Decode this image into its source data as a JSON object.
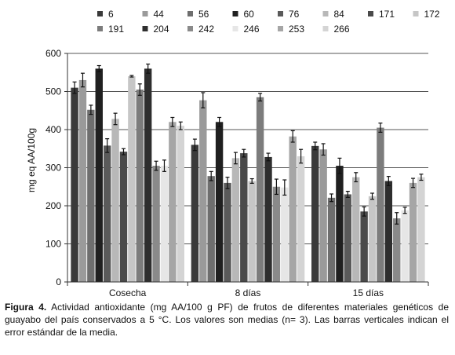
{
  "chart_data": {
    "type": "bar",
    "title": "",
    "xlabel": "",
    "ylabel": "mg eq AA/100g",
    "ylim": [
      0,
      600
    ],
    "yticks": [
      0,
      100,
      200,
      300,
      400,
      500,
      600
    ],
    "grid": true,
    "legend_position": "top",
    "categories": [
      "Cosecha",
      "8 días",
      "15 días"
    ],
    "series": [
      {
        "name": "6",
        "color": "#3a3a3a",
        "values": [
          510,
          360,
          357
        ],
        "errors": [
          15,
          15,
          10
        ]
      },
      {
        "name": "44",
        "color": "#9a9a9a",
        "values": [
          530,
          477,
          348
        ],
        "errors": [
          18,
          20,
          15
        ]
      },
      {
        "name": "56",
        "color": "#6e6e6e",
        "values": [
          452,
          278,
          221
        ],
        "errors": [
          12,
          12,
          10
        ]
      },
      {
        "name": "60",
        "color": "#202020",
        "values": [
          560,
          420,
          305
        ],
        "errors": [
          8,
          12,
          20
        ]
      },
      {
        "name": "76",
        "color": "#5a5a5a",
        "values": [
          358,
          260,
          230
        ],
        "errors": [
          18,
          15,
          8
        ]
      },
      {
        "name": "84",
        "color": "#b8b8b8",
        "values": [
          428,
          325,
          275
        ],
        "errors": [
          15,
          15,
          12
        ]
      },
      {
        "name": "171",
        "color": "#4a4a4a",
        "values": [
          342,
          338,
          185
        ],
        "errors": [
          8,
          10,
          12
        ]
      },
      {
        "name": "172",
        "color": "#c6c6c6",
        "values": [
          540,
          265,
          225
        ],
        "errors": [
          2,
          6,
          8
        ]
      },
      {
        "name": "191",
        "color": "#7c7c7c",
        "values": [
          505,
          485,
          405
        ],
        "errors": [
          15,
          10,
          12
        ]
      },
      {
        "name": "204",
        "color": "#2e2e2e",
        "values": [
          560,
          328,
          265
        ],
        "errors": [
          12,
          10,
          12
        ]
      },
      {
        "name": "242",
        "color": "#8a8a8a",
        "values": [
          305,
          250,
          167
        ],
        "errors": [
          12,
          20,
          15
        ]
      },
      {
        "name": "246",
        "color": "#e6e6e6",
        "values": [
          305,
          248,
          188
        ],
        "errors": [
          15,
          20,
          8
        ]
      },
      {
        "name": "253",
        "color": "#a6a6a6",
        "values": [
          420,
          382,
          260
        ],
        "errors": [
          12,
          15,
          12
        ]
      },
      {
        "name": "266",
        "color": "#d4d4d4",
        "values": [
          410,
          330,
          275
        ],
        "errors": [
          10,
          18,
          8
        ]
      }
    ]
  },
  "caption": {
    "label": "Figura 4.",
    "text": "Actividad antioxidante (mg AA/100 g PF) de frutos de diferentes materiales genéticos de guayabo del país conservados a 5 °C. Los valores son medias (n= 3). Las barras verticales indican el error estándar de la media."
  }
}
